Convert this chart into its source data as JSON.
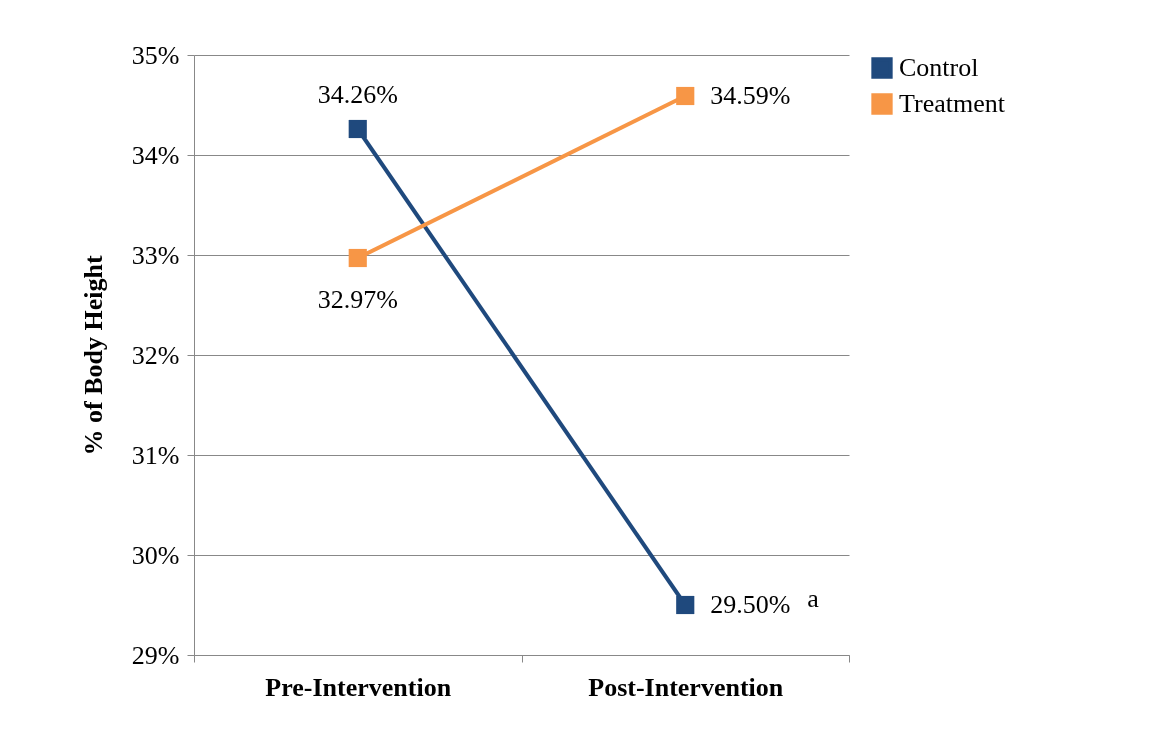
{
  "chart_data": {
    "type": "line",
    "ylabel": "% of Body Height",
    "categories": [
      "Pre-Intervention",
      "Post-Intervention"
    ],
    "series": [
      {
        "name": "Control",
        "color": "#1f497d",
        "values": [
          34.26,
          29.5
        ],
        "value_labels": [
          "34.26%",
          "29.50%"
        ]
      },
      {
        "name": "Treatment",
        "color": "#f79646",
        "values": [
          32.97,
          34.59
        ],
        "value_labels": [
          "32.97%",
          "34.59%"
        ]
      }
    ],
    "ylim": [
      29,
      35
    ],
    "yticks": [
      {
        "value": 29,
        "label": "29%"
      },
      {
        "value": 30,
        "label": "30%"
      },
      {
        "value": 31,
        "label": "31%"
      },
      {
        "value": 32,
        "label": "32%"
      },
      {
        "value": 33,
        "label": "33%"
      },
      {
        "value": 34,
        "label": "34%"
      },
      {
        "value": 35,
        "label": "35%"
      }
    ],
    "grid": "y",
    "legend": "right",
    "marker": "square",
    "line_style": "solid",
    "annotations": [
      "a"
    ]
  }
}
